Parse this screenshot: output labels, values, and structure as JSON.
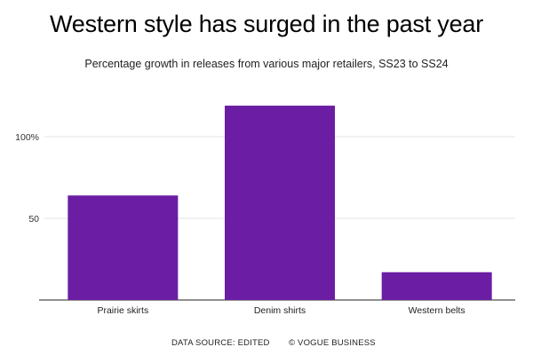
{
  "chart_data": {
    "type": "bar",
    "title": "Western style has surged in the past year",
    "subtitle": "Percentage growth in releases from various major retailers, SS23 to SS24",
    "categories": [
      "Prairie skirts",
      "Denim shirts",
      "Western belts"
    ],
    "values": [
      64,
      119,
      17
    ],
    "ylim": [
      0,
      120
    ],
    "yticks": [
      50,
      100
    ],
    "ytick_labels": [
      "50",
      "100%"
    ],
    "xlabel": "",
    "ylabel": "",
    "grid": true,
    "bar_color": "#6b1ea3"
  },
  "footer": {
    "source": "DATA SOURCE: EDITED",
    "credit": "© VOGUE BUSINESS"
  }
}
